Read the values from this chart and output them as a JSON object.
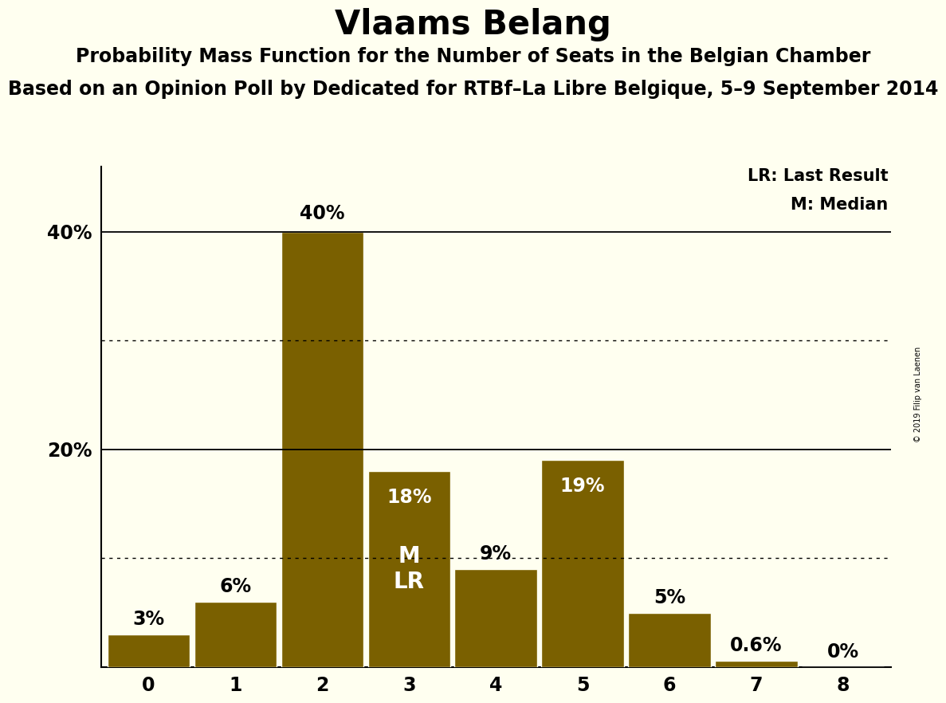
{
  "title": "Vlaams Belang",
  "subtitle1": "Probability Mass Function for the Number of Seats in the Belgian Chamber",
  "subtitle2": "Based on an Opinion Poll by Dedicated for RTBf–La Libre Belgique, 5–9 September 2014",
  "copyright": "© 2019 Filip van Laenen",
  "categories": [
    0,
    1,
    2,
    3,
    4,
    5,
    6,
    7,
    8
  ],
  "values": [
    3,
    6,
    40,
    18,
    9,
    19,
    5,
    0.6,
    0
  ],
  "labels": [
    "3%",
    "6%",
    "40%",
    "18%",
    "9%",
    "19%",
    "5%",
    "0.6%",
    "0%"
  ],
  "bar_color": "#7a6000",
  "background_color": "#fffff0",
  "median_seat": 3,
  "last_result_seat": 3,
  "legend_lr": "LR: Last Result",
  "legend_m": "M: Median",
  "yticks": [
    20,
    40
  ],
  "ytick_labels": [
    "20%",
    "40%"
  ],
  "ylim": [
    0,
    46
  ],
  "solid_line_y": [
    20,
    40
  ],
  "dotted_line_y": [
    10,
    30
  ],
  "title_fontsize": 30,
  "subtitle1_fontsize": 17,
  "subtitle2_fontsize": 17,
  "label_fontsize": 17,
  "tick_fontsize": 17,
  "bar_edge_color": "#fffff0",
  "bar_linewidth": 1.0,
  "label_color_inside": "#ffffff",
  "label_color_outside": "#000000",
  "ml_label_fontsize": 20,
  "legend_fontsize": 15
}
